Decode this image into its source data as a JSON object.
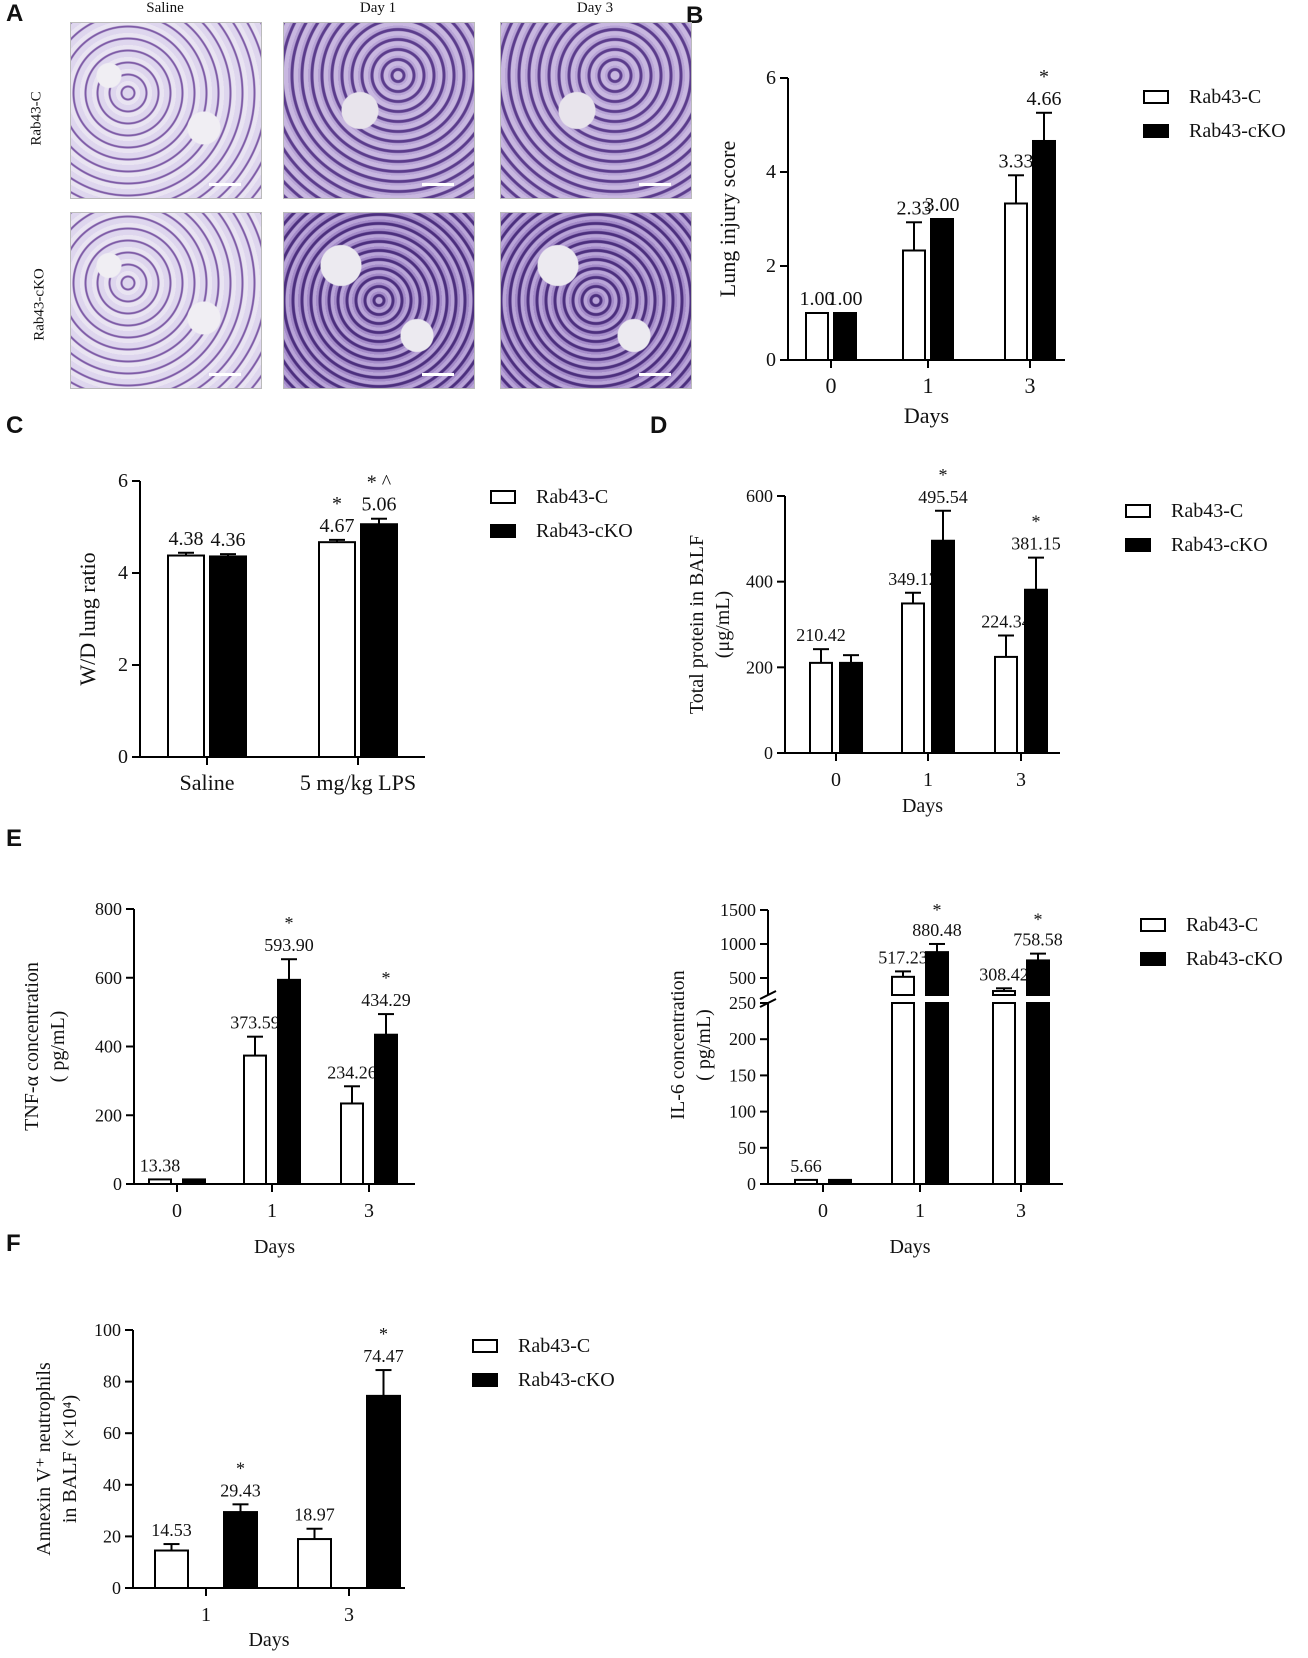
{
  "panels": {
    "a": "A",
    "b": "B",
    "c": "C",
    "d": "D",
    "e": "E",
    "f": "F"
  },
  "histology": {
    "columns": [
      "Saline",
      "Day 1",
      "Day 3"
    ],
    "rows": [
      "Rab43-C",
      "Rab43-cKO"
    ]
  },
  "legend": {
    "open": "Rab43-C",
    "filled": "Rab43-cKO"
  },
  "chart_data": [
    {
      "id": "B",
      "type": "bar",
      "categories": [
        "0",
        "1",
        "3"
      ],
      "series": [
        {
          "name": "Rab43-C",
          "values": [
            1.0,
            2.33,
            3.33
          ],
          "errors": [
            0,
            0.6,
            0.6
          ],
          "labels": [
            "1.00",
            "2.33",
            "3.33"
          ]
        },
        {
          "name": "Rab43-cKO",
          "values": [
            1.0,
            3.0,
            4.66
          ],
          "errors": [
            0,
            0,
            0.6
          ],
          "labels": [
            "1.00",
            "3.00",
            "4.66"
          ]
        }
      ],
      "marks": [
        [
          "",
          ""
        ],
        [
          "",
          ""
        ],
        [
          "",
          "*"
        ]
      ],
      "xlabel": "Days",
      "ylabel": "Lung injury score",
      "ylim": [
        0,
        6
      ],
      "yticks": [
        0,
        2,
        4,
        6
      ]
    },
    {
      "id": "C",
      "type": "bar",
      "categories": [
        "Saline",
        "5 mg/kg LPS"
      ],
      "series": [
        {
          "name": "Rab43-C",
          "values": [
            4.38,
            4.67
          ],
          "errors": [
            0.06,
            0.05
          ],
          "labels": [
            "4.38",
            "4.67"
          ]
        },
        {
          "name": "Rab43-cKO",
          "values": [
            4.36,
            5.06
          ],
          "errors": [
            0.05,
            0.12
          ],
          "labels": [
            "4.36",
            "5.06"
          ]
        }
      ],
      "marks": [
        [
          "",
          ""
        ],
        [
          "*",
          "* ^"
        ]
      ],
      "xlabel": "",
      "ylabel": "W/D lung ratio",
      "ylim": [
        0,
        6
      ],
      "yticks": [
        0,
        2,
        4,
        6
      ]
    },
    {
      "id": "D",
      "type": "bar",
      "categories": [
        "0",
        "1",
        "3"
      ],
      "series": [
        {
          "name": "Rab43-C",
          "values": [
            210.42,
            349.12,
            224.34
          ],
          "errors": [
            32,
            25,
            50
          ],
          "labels": [
            "210.42",
            "349.12",
            "224.34"
          ]
        },
        {
          "name": "Rab43-cKO",
          "values": [
            210.42,
            495.54,
            381.15
          ],
          "errors": [
            18,
            70,
            75
          ],
          "labels": [
            "",
            "495.54",
            "381.15"
          ]
        }
      ],
      "marks": [
        [
          "",
          ""
        ],
        [
          "",
          "*"
        ],
        [
          "",
          "*"
        ]
      ],
      "xlabel": "Days",
      "ylabel": "Total protein in BALF",
      "ylabel2": "(μg/mL)",
      "ylim": [
        0,
        600
      ],
      "yticks": [
        0,
        200,
        400,
        600
      ]
    },
    {
      "id": "E1",
      "type": "bar",
      "categories": [
        "0",
        "1",
        "3"
      ],
      "series": [
        {
          "name": "Rab43-C",
          "values": [
            13.38,
            373.59,
            234.26
          ],
          "errors": [
            0,
            55,
            50
          ],
          "labels": [
            "13.38",
            "373.59",
            "234.26"
          ]
        },
        {
          "name": "Rab43-cKO",
          "values": [
            13.38,
            593.9,
            434.29
          ],
          "errors": [
            0,
            60,
            60
          ],
          "labels": [
            "",
            "593.90",
            "434.29"
          ]
        }
      ],
      "marks": [
        [
          "",
          ""
        ],
        [
          "",
          "*"
        ],
        [
          "",
          "*"
        ]
      ],
      "xlabel": "Days",
      "ylabel": "TNF-α concentration",
      "ylabel2": "( pg/mL)",
      "ylim": [
        0,
        800
      ],
      "yticks": [
        0,
        200,
        400,
        600,
        800
      ]
    },
    {
      "id": "E2",
      "type": "bar",
      "categories": [
        "0",
        "1",
        "3"
      ],
      "series": [
        {
          "name": "Rab43-C",
          "values": [
            5.66,
            517.23,
            308.42
          ],
          "errors": [
            0,
            80,
            40
          ],
          "labels": [
            "5.66",
            "517.23",
            "308.42"
          ]
        },
        {
          "name": "Rab43-cKO",
          "values": [
            5.66,
            880.48,
            758.58
          ],
          "errors": [
            0,
            120,
            100
          ],
          "labels": [
            "",
            "880.48",
            "758.58"
          ]
        }
      ],
      "marks": [
        [
          "",
          ""
        ],
        [
          "",
          "*"
        ],
        [
          "",
          "*"
        ]
      ],
      "xlabel": "Days",
      "ylabel": "IL-6 concentration",
      "ylabel2": "( pg/mL)",
      "ylim_lower": [
        0,
        250
      ],
      "yticks_lower": [
        0,
        50,
        100,
        150,
        200,
        250
      ],
      "ylim_upper": [
        250,
        1500
      ],
      "yticks_upper": [
        500,
        1000,
        1500
      ],
      "broken_axis": true
    },
    {
      "id": "F",
      "type": "bar",
      "categories": [
        "1",
        "3"
      ],
      "series": [
        {
          "name": "Rab43-C",
          "values": [
            14.53,
            18.97
          ],
          "errors": [
            2.5,
            4
          ],
          "labels": [
            "14.53",
            "18.97"
          ]
        },
        {
          "name": "Rab43-cKO",
          "values": [
            29.43,
            74.47
          ],
          "errors": [
            3,
            10
          ],
          "labels": [
            "29.43",
            "74.47"
          ]
        }
      ],
      "marks": [
        [
          "",
          "*"
        ],
        [
          "",
          "*"
        ]
      ],
      "xlabel": "Days",
      "ylabel": "Annexin V⁺ neutrophils",
      "ylabel2": "in BALF (×10⁴)",
      "ylim": [
        0,
        100
      ],
      "yticks": [
        0,
        20,
        40,
        60,
        80,
        100
      ]
    }
  ]
}
